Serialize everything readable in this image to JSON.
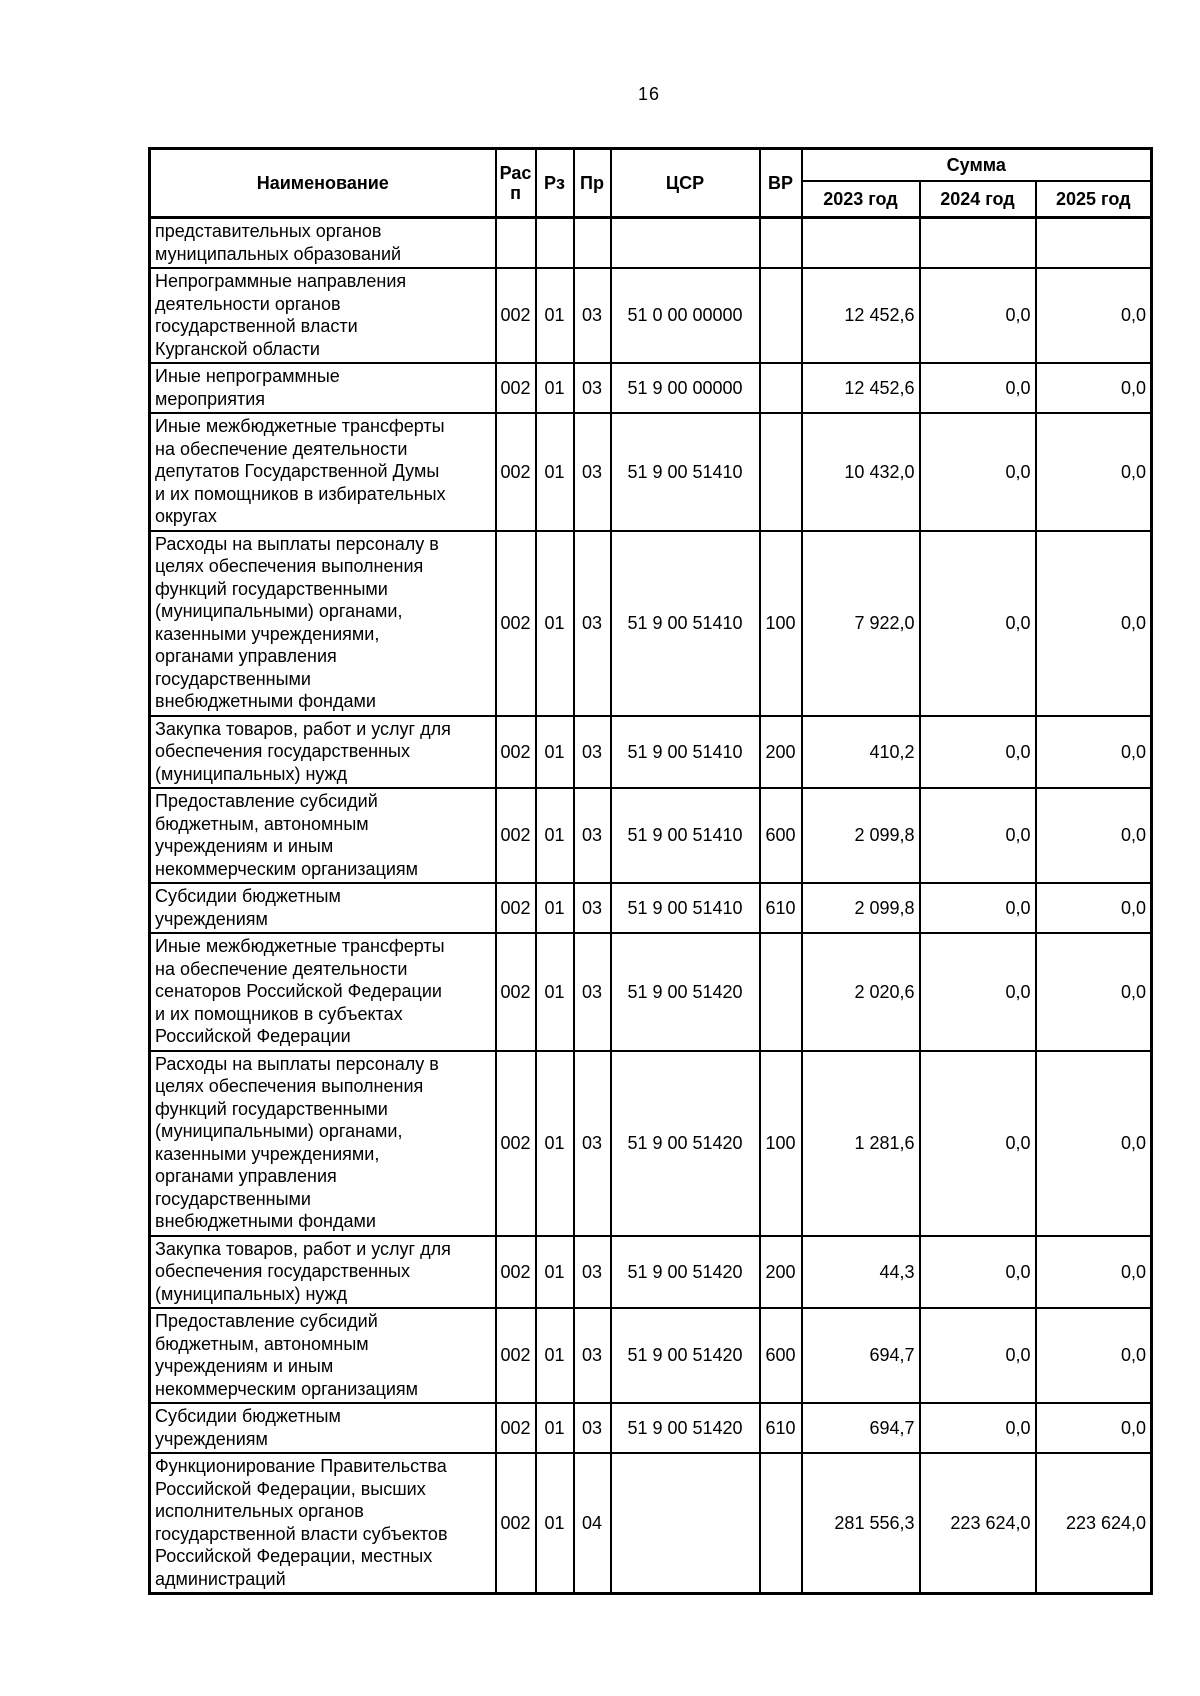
{
  "page": {
    "number": "16"
  },
  "colors": {
    "text": "#000000",
    "background": "#ffffff",
    "border": "#000000"
  },
  "table": {
    "header": {
      "name": "Наименование",
      "rasp": "Рас\nп",
      "rz": "Рз",
      "pr": "Пр",
      "csr": "ЦСР",
      "vr": "ВР",
      "summa": "Сумма",
      "y2023": "2023 год",
      "y2024": "2024 год",
      "y2025": "2025 год"
    },
    "rows": [
      {
        "name": "представительных органов\nмуниципальных образований",
        "rasp": "",
        "rz": "",
        "pr": "",
        "csr": "",
        "vr": "",
        "y2023": "",
        "y2024": "",
        "y2025": ""
      },
      {
        "name": "Непрограммные направления\nдеятельности органов\nгосударственной власти\nКурганской области",
        "rasp": "002",
        "rz": "01",
        "pr": "03",
        "csr": "51 0 00 00000",
        "vr": "",
        "y2023": "12 452,6",
        "y2024": "0,0",
        "y2025": "0,0"
      },
      {
        "name": "Иные непрограммные\nмероприятия",
        "rasp": "002",
        "rz": "01",
        "pr": "03",
        "csr": "51 9 00 00000",
        "vr": "",
        "y2023": "12 452,6",
        "y2024": "0,0",
        "y2025": "0,0"
      },
      {
        "name": "Иные межбюджетные трансферты\nна обеспечение деятельности\nдепутатов Государственной Думы\nи их помощников в избирательных\nокругах",
        "rasp": "002",
        "rz": "01",
        "pr": "03",
        "csr": "51 9 00 51410",
        "vr": "",
        "y2023": "10 432,0",
        "y2024": "0,0",
        "y2025": "0,0"
      },
      {
        "name": "Расходы на выплаты персоналу в\nцелях обеспечения выполнения\nфункций государственными\n(муниципальными) органами,\nказенными учреждениями,\nорганами управления\nгосударственными\nвнебюджетными фондами",
        "rasp": "002",
        "rz": "01",
        "pr": "03",
        "csr": "51 9 00 51410",
        "vr": "100",
        "y2023": "7 922,0",
        "y2024": "0,0",
        "y2025": "0,0"
      },
      {
        "name": "Закупка товаров, работ и услуг для\nобеспечения государственных\n(муниципальных) нужд",
        "rasp": "002",
        "rz": "01",
        "pr": "03",
        "csr": "51 9 00 51410",
        "vr": "200",
        "y2023": "410,2",
        "y2024": "0,0",
        "y2025": "0,0"
      },
      {
        "name": "Предоставление субсидий\nбюджетным, автономным\nучреждениям и иным\nнекоммерческим организациям",
        "rasp": "002",
        "rz": "01",
        "pr": "03",
        "csr": "51 9 00 51410",
        "vr": "600",
        "y2023": "2 099,8",
        "y2024": "0,0",
        "y2025": "0,0"
      },
      {
        "name": "Субсидии бюджетным\nучреждениям",
        "rasp": "002",
        "rz": "01",
        "pr": "03",
        "csr": "51 9 00 51410",
        "vr": "610",
        "y2023": "2 099,8",
        "y2024": "0,0",
        "y2025": "0,0"
      },
      {
        "name": "Иные межбюджетные трансферты\nна обеспечение деятельности\nсенаторов Российской Федерации\nи их помощников в субъектах\nРоссийской Федерации",
        "rasp": "002",
        "rz": "01",
        "pr": "03",
        "csr": "51 9 00 51420",
        "vr": "",
        "y2023": "2 020,6",
        "y2024": "0,0",
        "y2025": "0,0"
      },
      {
        "name": "Расходы на выплаты персоналу в\nцелях обеспечения выполнения\nфункций государственными\n(муниципальными) органами,\nказенными учреждениями,\nорганами управления\nгосударственными\nвнебюджетными фондами",
        "rasp": "002",
        "rz": "01",
        "pr": "03",
        "csr": "51 9 00 51420",
        "vr": "100",
        "y2023": "1 281,6",
        "y2024": "0,0",
        "y2025": "0,0"
      },
      {
        "name": "Закупка товаров, работ и услуг для\nобеспечения государственных\n(муниципальных) нужд",
        "rasp": "002",
        "rz": "01",
        "pr": "03",
        "csr": "51 9 00 51420",
        "vr": "200",
        "y2023": "44,3",
        "y2024": "0,0",
        "y2025": "0,0"
      },
      {
        "name": "Предоставление субсидий\nбюджетным, автономным\nучреждениям и иным\nнекоммерческим организациям",
        "rasp": "002",
        "rz": "01",
        "pr": "03",
        "csr": "51 9 00 51420",
        "vr": "600",
        "y2023": "694,7",
        "y2024": "0,0",
        "y2025": "0,0"
      },
      {
        "name": "Субсидии бюджетным\nучреждениям",
        "rasp": "002",
        "rz": "01",
        "pr": "03",
        "csr": "51 9 00 51420",
        "vr": "610",
        "y2023": "694,7",
        "y2024": "0,0",
        "y2025": "0,0"
      },
      {
        "name": "Функционирование Правительства\nРоссийской Федерации, высших\nисполнительных органов\nгосударственной власти субъектов\nРоссийской Федерации, местных\nадминистраций",
        "rasp": "002",
        "rz": "01",
        "pr": "04",
        "csr": "",
        "vr": "",
        "y2023": "281 556,3",
        "y2024": "223 624,0",
        "y2025": "223 624,0"
      }
    ]
  }
}
